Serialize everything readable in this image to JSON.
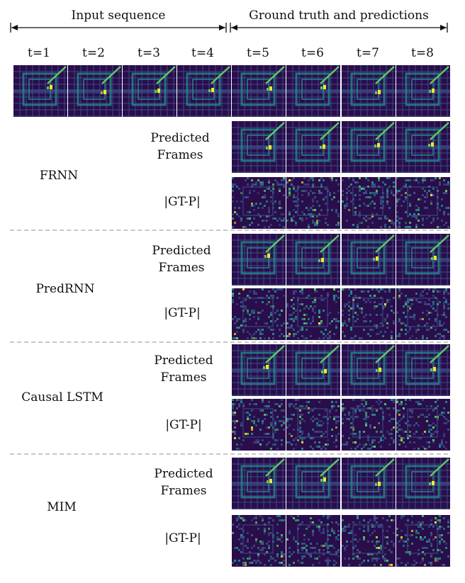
{
  "headers": {
    "input_sequence": "Input sequence",
    "ground_truth": "Ground truth and predictions"
  },
  "timesteps": [
    "t=1",
    "t=2",
    "t=3",
    "t=4",
    "t=5",
    "t=6",
    "t=7",
    "t=8"
  ],
  "row_labels": {
    "predicted_line1": "Predicted",
    "predicted_line2": "Frames",
    "diff": "|GT-P|"
  },
  "models": [
    "FRNN",
    "PredRNN",
    "Causal LSTM",
    "MIM"
  ],
  "colors": {
    "bg_dark": "#2a0d4b",
    "ring": "#21918c",
    "grid": "#3b528b",
    "hot": "#fde725",
    "warm": "#5ec962",
    "separator": "#c8c8c8"
  }
}
